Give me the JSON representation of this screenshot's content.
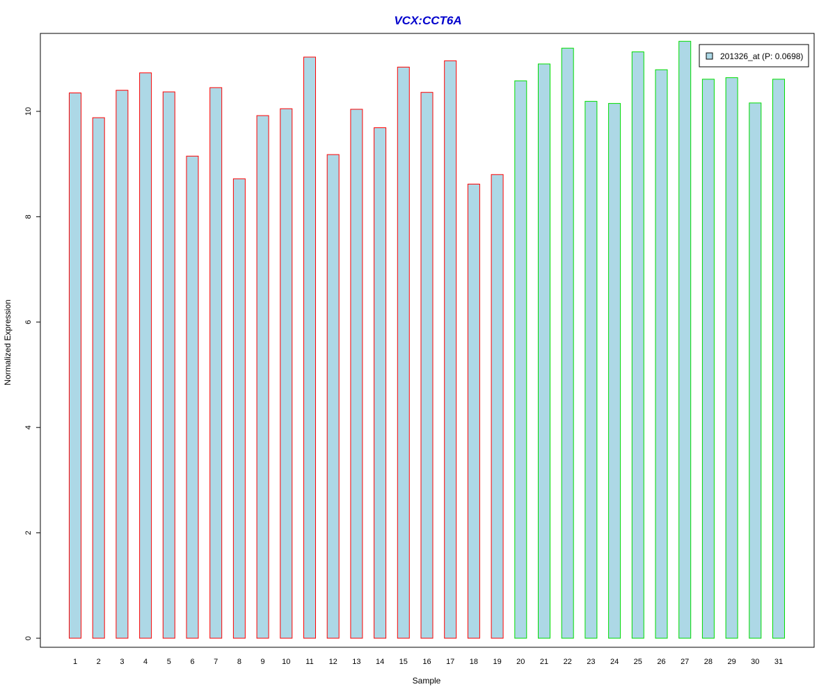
{
  "chart_data": {
    "type": "bar",
    "title": "VCX:CCT6A",
    "xlabel": "Sample",
    "ylabel": "Normalized Expression",
    "categories": [
      "1",
      "2",
      "3",
      "4",
      "5",
      "6",
      "7",
      "8",
      "9",
      "10",
      "11",
      "12",
      "13",
      "14",
      "15",
      "16",
      "17",
      "18",
      "19",
      "20",
      "21",
      "22",
      "23",
      "24",
      "25",
      "26",
      "27",
      "28",
      "29",
      "30",
      "31"
    ],
    "series": [
      {
        "name": "201326_at (P: 0.0698)",
        "values": [
          10.35,
          9.88,
          10.4,
          10.73,
          10.37,
          9.15,
          10.45,
          8.72,
          9.92,
          10.05,
          11.03,
          9.18,
          10.04,
          9.69,
          10.84,
          10.36,
          10.96,
          8.62,
          8.8,
          10.58,
          10.9,
          11.2,
          10.19,
          10.15,
          11.13,
          10.79,
          11.33,
          10.61,
          10.64,
          10.16,
          10.61
        ]
      }
    ],
    "bar_fill_color": "#add8e6",
    "group_border_colors": [
      "#ff0000",
      "#00dd00"
    ],
    "group_sizes": [
      19,
      12
    ],
    "yticks": [
      0,
      2,
      4,
      6,
      8,
      10
    ],
    "ylim": [
      0,
      11.33
    ],
    "legend_position": "top-right"
  }
}
